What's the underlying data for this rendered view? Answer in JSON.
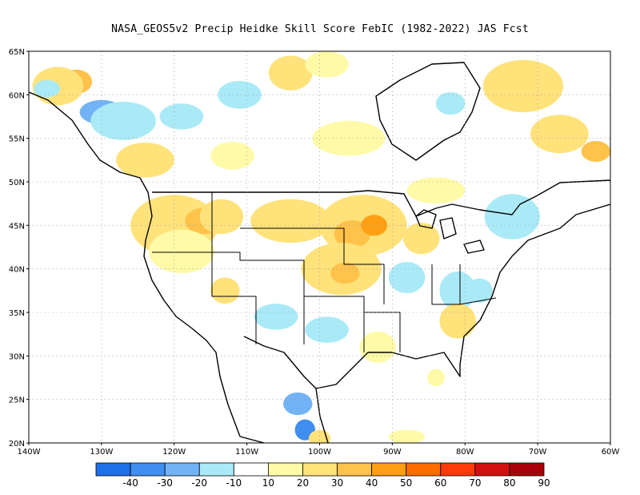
{
  "title": "NASA_GEOS5v2 Precip Heidke Skill Score FebIC (1982-2022) JAS Fcst",
  "map": {
    "projection": "equirectangular",
    "lon_range": [
      -140,
      -60
    ],
    "lat_range": [
      20,
      65
    ],
    "grid": true,
    "lat_labels": [
      "20N",
      "25N",
      "30N",
      "35N",
      "40N",
      "45N",
      "50N",
      "55N",
      "60N",
      "65N"
    ],
    "lon_labels": [
      "140W",
      "130W",
      "120W",
      "110W",
      "100W",
      "90W",
      "80W",
      "70W",
      "60W"
    ]
  },
  "colorbar": {
    "labels": [
      "-40",
      "-30",
      "-20",
      "-10",
      "10",
      "20",
      "30",
      "40",
      "50",
      "60",
      "70",
      "80",
      "90"
    ],
    "colors": [
      "#1f6fe8",
      "#3f8ef0",
      "#72b3f6",
      "#aaeaf7",
      "#ffffff",
      "#fffaa8",
      "#ffe27a",
      "#ffc24a",
      "#ff9f14",
      "#ff6d00",
      "#ff3a0a",
      "#d40f0f",
      "#a8000a"
    ]
  },
  "field_patches": [
    {
      "lon": -133.5,
      "lat": 61.5,
      "rx": 2.2,
      "ry": 1.4,
      "color": "#ffc24a"
    },
    {
      "lon": -136,
      "lat": 61,
      "rx": 3.5,
      "ry": 2.2,
      "color": "#ffe27a"
    },
    {
      "lon": -137.5,
      "lat": 60.7,
      "rx": 1.8,
      "ry": 1.0,
      "color": "#aaeaf7"
    },
    {
      "lon": -130,
      "lat": 58,
      "rx": 3.0,
      "ry": 1.4,
      "color": "#72b3f6"
    },
    {
      "lon": -127,
      "lat": 57,
      "rx": 4.5,
      "ry": 2.2,
      "color": "#aaeaf7"
    },
    {
      "lon": -119,
      "lat": 57.5,
      "rx": 3.0,
      "ry": 1.5,
      "color": "#aaeaf7"
    },
    {
      "lon": -111,
      "lat": 60,
      "rx": 3.0,
      "ry": 1.6,
      "color": "#aaeaf7"
    },
    {
      "lon": -104,
      "lat": 62.5,
      "rx": 3.0,
      "ry": 2.0,
      "color": "#ffe27a"
    },
    {
      "lon": -99,
      "lat": 63.5,
      "rx": 3.0,
      "ry": 1.5,
      "color": "#fffaa8"
    },
    {
      "lon": -124,
      "lat": 52.5,
      "rx": 4.0,
      "ry": 2.0,
      "color": "#ffe27a"
    },
    {
      "lon": -112,
      "lat": 53,
      "rx": 3.0,
      "ry": 1.6,
      "color": "#fffaa8"
    },
    {
      "lon": -96,
      "lat": 55,
      "rx": 5.0,
      "ry": 2.0,
      "color": "#fffaa8"
    },
    {
      "lon": -82,
      "lat": 59,
      "rx": 2.0,
      "ry": 1.3,
      "color": "#aaeaf7"
    },
    {
      "lon": -74,
      "lat": 61.5,
      "rx": 3.0,
      "ry": 2.0,
      "color": "#ffc24a"
    },
    {
      "lon": -72,
      "lat": 61,
      "rx": 5.5,
      "ry": 3.0,
      "color": "#ffe27a"
    },
    {
      "lon": -67,
      "lat": 55.5,
      "rx": 4.0,
      "ry": 2.2,
      "color": "#ffe27a"
    },
    {
      "lon": -62,
      "lat": 53.5,
      "rx": 2.0,
      "ry": 1.2,
      "color": "#ffc24a"
    },
    {
      "lon": -84,
      "lat": 49,
      "rx": 4.0,
      "ry": 1.5,
      "color": "#fffaa8"
    },
    {
      "lon": -73,
      "lat": 45.5,
      "rx": 2.2,
      "ry": 1.8,
      "color": "#72b3f6"
    },
    {
      "lon": -73.5,
      "lat": 46,
      "rx": 3.8,
      "ry": 2.6,
      "color": "#aaeaf7"
    },
    {
      "lon": -120,
      "lat": 45,
      "rx": 6.0,
      "ry": 3.5,
      "color": "#ffe27a"
    },
    {
      "lon": -116,
      "lat": 45.5,
      "rx": 2.5,
      "ry": 1.5,
      "color": "#ffc24a"
    },
    {
      "lon": -113.5,
      "lat": 46,
      "rx": 3.0,
      "ry": 2.0,
      "color": "#ffe27a"
    },
    {
      "lon": -119,
      "lat": 42,
      "rx": 4.5,
      "ry": 2.5,
      "color": "#fffaa8"
    },
    {
      "lon": -104,
      "lat": 45.5,
      "rx": 5.5,
      "ry": 2.5,
      "color": "#ffe27a"
    },
    {
      "lon": -94,
      "lat": 45,
      "rx": 6.0,
      "ry": 3.5,
      "color": "#ffe27a"
    },
    {
      "lon": -95.5,
      "lat": 44,
      "rx": 2.5,
      "ry": 1.6,
      "color": "#ffc24a"
    },
    {
      "lon": -92.5,
      "lat": 45,
      "rx": 1.8,
      "ry": 1.2,
      "color": "#ff9f14"
    },
    {
      "lon": -97,
      "lat": 40,
      "rx": 5.5,
      "ry": 3.0,
      "color": "#ffe27a"
    },
    {
      "lon": -96.5,
      "lat": 39.5,
      "rx": 2.0,
      "ry": 1.2,
      "color": "#ffc24a"
    },
    {
      "lon": -86,
      "lat": 43.5,
      "rx": 2.5,
      "ry": 1.8,
      "color": "#ffe27a"
    },
    {
      "lon": -88,
      "lat": 39,
      "rx": 2.5,
      "ry": 1.8,
      "color": "#aaeaf7"
    },
    {
      "lon": -81,
      "lat": 37.5,
      "rx": 2.5,
      "ry": 2.2,
      "color": "#aaeaf7"
    },
    {
      "lon": -78,
      "lat": 37.5,
      "rx": 1.8,
      "ry": 1.4,
      "color": "#aaeaf7"
    },
    {
      "lon": -113,
      "lat": 37.5,
      "rx": 2.0,
      "ry": 1.5,
      "color": "#ffe27a"
    },
    {
      "lon": -106,
      "lat": 34.5,
      "rx": 3.0,
      "ry": 1.5,
      "color": "#aaeaf7"
    },
    {
      "lon": -99,
      "lat": 33,
      "rx": 3.0,
      "ry": 1.5,
      "color": "#aaeaf7"
    },
    {
      "lon": -92,
      "lat": 31,
      "rx": 2.5,
      "ry": 1.8,
      "color": "#fffaa8"
    },
    {
      "lon": -81,
      "lat": 34,
      "rx": 2.5,
      "ry": 2.0,
      "color": "#ffe27a"
    },
    {
      "lon": -103,
      "lat": 24.5,
      "rx": 2.0,
      "ry": 1.3,
      "color": "#72b3f6"
    },
    {
      "lon": -102,
      "lat": 21.5,
      "rx": 1.4,
      "ry": 1.2,
      "color": "#3f8ef0"
    },
    {
      "lon": -100,
      "lat": 20.5,
      "rx": 1.5,
      "ry": 1.0,
      "color": "#ffe27a"
    },
    {
      "lon": -88,
      "lat": 20.7,
      "rx": 2.5,
      "ry": 0.8,
      "color": "#fffaa8"
    },
    {
      "lon": -84,
      "lat": 27.5,
      "rx": 1.2,
      "ry": 1.0,
      "color": "#fffaa8"
    }
  ]
}
